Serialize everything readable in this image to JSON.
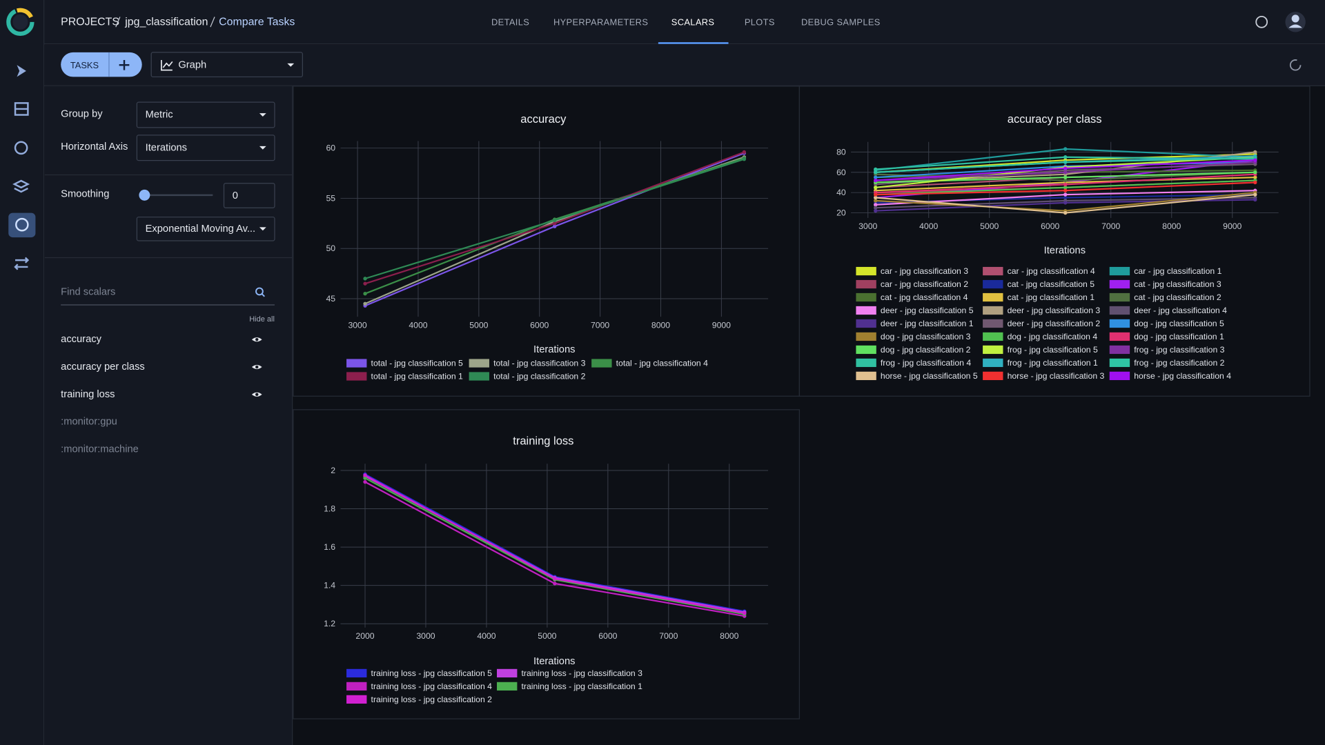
{
  "breadcrumb": [
    "PROJECTS",
    "jpg_classification",
    "Compare Tasks"
  ],
  "tabs": [
    "DETAILS",
    "HYPERPARAMETERS",
    "SCALARS",
    "PLOTS",
    "DEBUG SAMPLES"
  ],
  "toolbar": {
    "tasks_button": "TASKS",
    "view": "Graph"
  },
  "settings": {
    "group_by_label": "Group by",
    "group_by": "Metric",
    "horizontal_axis_label": "Horizontal Axis",
    "horizontal_axis": "Iterations",
    "smoothing_label": "Smoothing",
    "smoothing": 0,
    "smoothing_method": "Exponential Moving Av..."
  },
  "scalars": {
    "search_placeholder": "Find scalars",
    "hide_all": "Hide all",
    "items": [
      {
        "name": "accuracy",
        "visible": true
      },
      {
        "name": "accuracy per class",
        "visible": true
      },
      {
        "name": "training loss",
        "visible": true
      },
      {
        "name": ":monitor:gpu",
        "visible": false
      },
      {
        "name": ":monitor:machine",
        "visible": false
      }
    ]
  },
  "chart_data": [
    {
      "type": "line",
      "title": "accuracy",
      "x_label": "Iterations",
      "x": [
        3125,
        6250,
        9375
      ],
      "xlim": [
        2720,
        9770
      ],
      "xticks": [
        3000,
        4000,
        5000,
        6000,
        7000,
        8000,
        9000
      ],
      "ylim": [
        43.2,
        60.7
      ],
      "yticks": [
        45,
        50,
        55,
        60
      ],
      "grid": true,
      "series": [
        {
          "name": "total - jpg classification 5",
          "color": "#7b55e8",
          "values": [
            44.3,
            52.2,
            59.5
          ]
        },
        {
          "name": "total - jpg classification 3",
          "color": "#9da58a",
          "values": [
            44.5,
            52.7,
            59.1
          ]
        },
        {
          "name": "total - jpg classification 4",
          "color": "#3b8f48",
          "values": [
            45.5,
            52.9,
            59.0
          ]
        },
        {
          "name": "total - jpg classification 1",
          "color": "#8c1f4d",
          "values": [
            46.5,
            52.5,
            59.6
          ]
        },
        {
          "name": "total - jpg classification 2",
          "color": "#2f8a55",
          "values": [
            47.0,
            52.8,
            58.9
          ]
        }
      ]
    },
    {
      "type": "line",
      "title": "accuracy per class",
      "x_label": "Iterations",
      "x": [
        3125,
        6250,
        9375
      ],
      "xlim": [
        2720,
        9760
      ],
      "xticks": [
        3000,
        4000,
        5000,
        6000,
        7000,
        8000,
        9000
      ],
      "ylim": [
        15,
        90
      ],
      "yticks": [
        20,
        40,
        60,
        80
      ],
      "grid": true,
      "series": [
        {
          "name": "car - jpg classification 3",
          "color": "#d4e52a",
          "values": [
            60,
            72,
            78
          ]
        },
        {
          "name": "car - jpg classification 4",
          "color": "#b05070",
          "values": [
            45,
            55,
            60
          ]
        },
        {
          "name": "car - jpg classification 1",
          "color": "#1f9c9c",
          "values": [
            62,
            83,
            75
          ]
        },
        {
          "name": "car - jpg classification 2",
          "color": "#a04060",
          "values": [
            40,
            45,
            52
          ]
        },
        {
          "name": "cat - jpg classification 5",
          "color": "#1a2a9a",
          "values": [
            30,
            35,
            38
          ]
        },
        {
          "name": "cat - jpg classification 3",
          "color": "#a020f0",
          "values": [
            35,
            50,
            72
          ]
        },
        {
          "name": "cat - jpg classification 4",
          "color": "#4a7030",
          "values": [
            55,
            60,
            62
          ]
        },
        {
          "name": "cat - jpg classification 1",
          "color": "#e0c040",
          "values": [
            42,
            50,
            55
          ]
        },
        {
          "name": "cat - jpg classification 2",
          "color": "#507040",
          "values": [
            58,
            52,
            60
          ]
        },
        {
          "name": "deer - jpg classification 5",
          "color": "#f080f0",
          "values": [
            28,
            38,
            42
          ]
        },
        {
          "name": "deer - jpg classification 3",
          "color": "#b0a080",
          "values": [
            50,
            58,
            80
          ]
        },
        {
          "name": "deer - jpg classification 4",
          "color": "#605070",
          "values": [
            25,
            32,
            35
          ]
        },
        {
          "name": "deer - jpg classification 1",
          "color": "#503090",
          "values": [
            22,
            30,
            33
          ]
        },
        {
          "name": "deer - jpg classification 2",
          "color": "#705870",
          "values": [
            48,
            62,
            68
          ]
        },
        {
          "name": "dog - jpg classification 5",
          "color": "#3090e0",
          "values": [
            55,
            66,
            70
          ]
        },
        {
          "name": "dog - jpg classification 3",
          "color": "#a08030",
          "values": [
            32,
            22,
            40
          ]
        },
        {
          "name": "dog - jpg classification 4",
          "color": "#50c050",
          "values": [
            38,
            45,
            52
          ]
        },
        {
          "name": "dog - jpg classification 1",
          "color": "#e03070",
          "values": [
            40,
            48,
            58
          ]
        },
        {
          "name": "dog - jpg classification 2",
          "color": "#60e060",
          "values": [
            50,
            55,
            60
          ]
        },
        {
          "name": "frog - jpg classification 5",
          "color": "#c0f040",
          "values": [
            45,
            65,
            75
          ]
        },
        {
          "name": "frog - jpg classification 3",
          "color": "#8030a0",
          "values": [
            52,
            60,
            70
          ]
        },
        {
          "name": "frog - jpg classification 4",
          "color": "#30c0a0",
          "values": [
            63,
            75,
            73
          ]
        },
        {
          "name": "frog - jpg classification 1",
          "color": "#30b0c0",
          "values": [
            60,
            70,
            76
          ]
        },
        {
          "name": "frog - jpg classification 2",
          "color": "#2fc4a4",
          "values": [
            60,
            70,
            74
          ]
        },
        {
          "name": "horse - jpg classification 5",
          "color": "#e0c090",
          "values": [
            35,
            20,
            38
          ]
        },
        {
          "name": "horse - jpg classification 3",
          "color": "#f03030",
          "values": [
            38,
            42,
            50
          ]
        },
        {
          "name": "horse - jpg classification 4",
          "color": "#a010f0",
          "values": [
            52,
            64,
            72
          ]
        }
      ]
    },
    {
      "type": "line",
      "title": "training loss",
      "x_label": "Iterations",
      "x": [
        2000,
        5125,
        8250
      ],
      "xlim": [
        1596,
        8640
      ],
      "xticks": [
        2000,
        3000,
        4000,
        5000,
        6000,
        7000,
        8000
      ],
      "ylim": [
        1.18,
        2.035
      ],
      "yticks": [
        1.2,
        1.4,
        1.6,
        1.8,
        2
      ],
      "grid": true,
      "series": [
        {
          "name": "training loss - jpg classification 5",
          "color": "#2b2bdc",
          "values": [
            1.98,
            1.445,
            1.265
          ]
        },
        {
          "name": "training loss - jpg classification 3",
          "color": "#c040e0",
          "values": [
            1.97,
            1.44,
            1.26
          ]
        },
        {
          "name": "training loss - jpg classification 4",
          "color": "#c020c0",
          "values": [
            1.94,
            1.41,
            1.24
          ]
        },
        {
          "name": "training loss - jpg classification 1",
          "color": "#4caf50",
          "values": [
            1.96,
            1.43,
            1.25
          ]
        },
        {
          "name": "training loss - jpg classification 2",
          "color": "#d020d0",
          "values": [
            1.975,
            1.435,
            1.255
          ]
        }
      ]
    }
  ]
}
